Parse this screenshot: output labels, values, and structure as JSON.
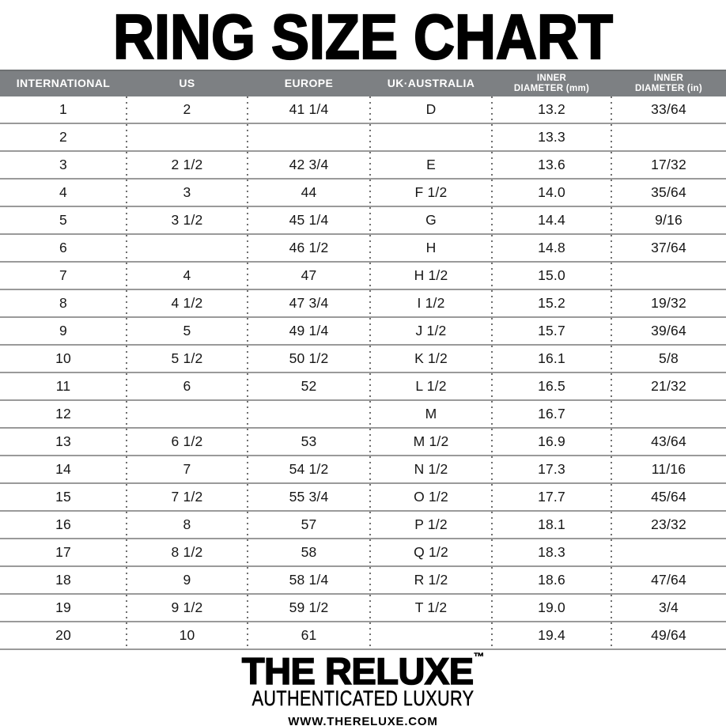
{
  "title": "RING SIZE CHART",
  "chart_data": {
    "type": "table",
    "title": "RING SIZE CHART",
    "columns": [
      "INTERNATIONAL",
      "US",
      "EUROPE",
      "UK·AUSTRALIA",
      "INNER DIAMETER (mm)",
      "INNER DIAMETER (in)"
    ],
    "header_lines": [
      [
        "INTERNATIONAL"
      ],
      [
        "US"
      ],
      [
        "EUROPE"
      ],
      [
        "UK·AUSTRALIA"
      ],
      [
        "INNER",
        "DIAMETER (mm)"
      ],
      [
        "INNER",
        "DIAMETER (in)"
      ]
    ],
    "rows": [
      [
        "1",
        "2",
        "41 1/4",
        "D",
        "13.2",
        "33/64"
      ],
      [
        "2",
        "",
        "",
        "",
        "13.3",
        ""
      ],
      [
        "3",
        "2 1/2",
        "42 3/4",
        "E",
        "13.6",
        "17/32"
      ],
      [
        "4",
        "3",
        "44",
        "F 1/2",
        "14.0",
        "35/64"
      ],
      [
        "5",
        "3 1/2",
        "45 1/4",
        "G",
        "14.4",
        "9/16"
      ],
      [
        "6",
        "",
        "46 1/2",
        "H",
        "14.8",
        "37/64"
      ],
      [
        "7",
        "4",
        "47",
        "H 1/2",
        "15.0",
        ""
      ],
      [
        "8",
        "4 1/2",
        "47 3/4",
        "I 1/2",
        "15.2",
        "19/32"
      ],
      [
        "9",
        "5",
        "49 1/4",
        "J 1/2",
        "15.7",
        "39/64"
      ],
      [
        "10",
        "5 1/2",
        "50 1/2",
        "K 1/2",
        "16.1",
        "5/8"
      ],
      [
        "11",
        "6",
        "52",
        "L 1/2",
        "16.5",
        "21/32"
      ],
      [
        "12",
        "",
        "",
        "M",
        "16.7",
        ""
      ],
      [
        "13",
        "6 1/2",
        "53",
        "M 1/2",
        "16.9",
        "43/64"
      ],
      [
        "14",
        "7",
        "54 1/2",
        "N 1/2",
        "17.3",
        "11/16"
      ],
      [
        "15",
        "7 1/2",
        "55 3/4",
        "O 1/2",
        "17.7",
        "45/64"
      ],
      [
        "16",
        "8",
        "57",
        "P 1/2",
        "18.1",
        "23/32"
      ],
      [
        "17",
        "8 1/2",
        "58",
        "Q 1/2",
        "18.3",
        ""
      ],
      [
        "18",
        "9",
        "58 1/4",
        "R 1/2",
        "18.6",
        "47/64"
      ],
      [
        "19",
        "9 1/2",
        "59 1/2",
        "T 1/2",
        "19.0",
        "3/4"
      ],
      [
        "20",
        "10",
        "61",
        "",
        "19.4",
        "49/64"
      ]
    ]
  },
  "footer": {
    "brand": "THE RELUXE",
    "trademark": "™",
    "tagline": "AUTHENTICATED LUXURY",
    "website": "WWW.THERELUXE.COM"
  },
  "colors": {
    "header_bg": "#7d8083",
    "header_text": "#ffffff",
    "row_divider": "#9a9a9a",
    "dotted_separator": "#6f6f6f",
    "text": "#161616",
    "title_text": "#000000",
    "background": "#ffffff"
  }
}
